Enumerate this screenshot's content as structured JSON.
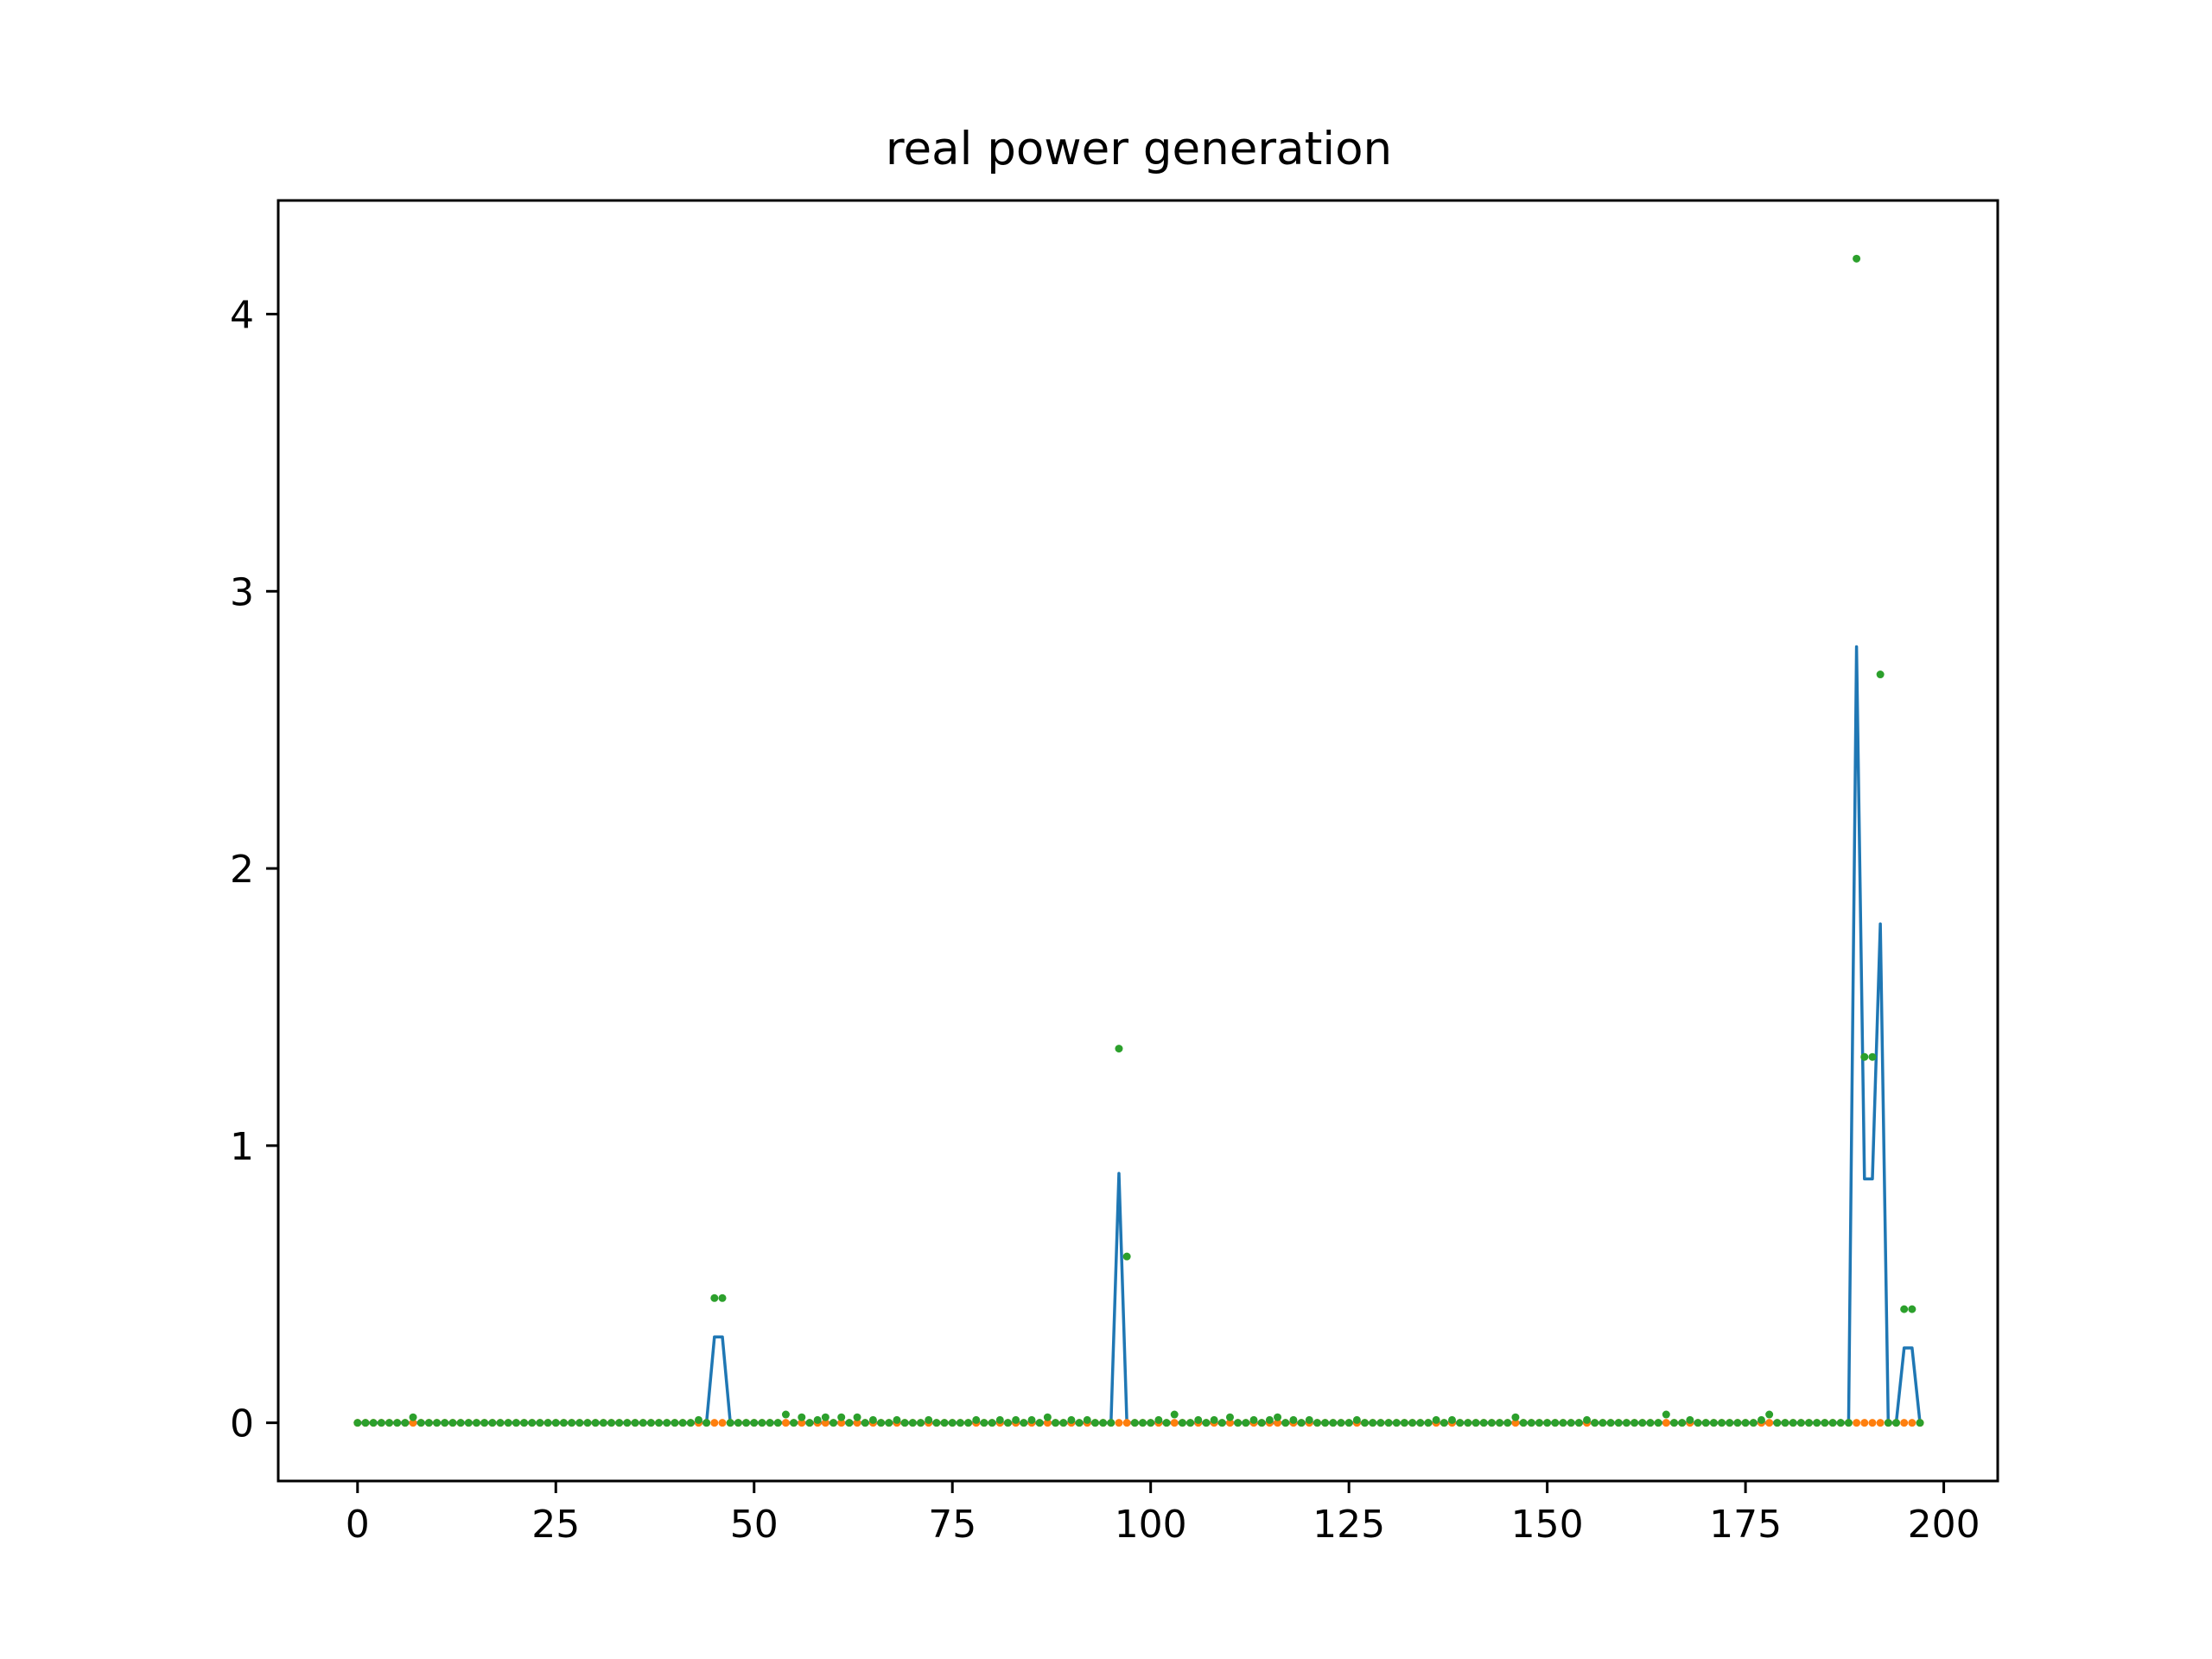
{
  "chart_data": {
    "type": "line",
    "title": "real power generation",
    "xlabel": "",
    "ylabel": "",
    "xlim": [
      -10,
      206.8
    ],
    "ylim": [
      -0.21,
      4.41
    ],
    "x_ticks": [
      0,
      25,
      50,
      75,
      100,
      125,
      150,
      175,
      200
    ],
    "y_ticks": [
      0,
      1,
      2,
      3,
      4
    ],
    "grid": false,
    "legend": "none",
    "n_points": 198,
    "series": [
      {
        "style": "line",
        "color": "#1f77b4",
        "nonzero_points": [
          [
            45,
            0.31
          ],
          [
            46,
            0.31
          ],
          [
            96,
            0.9
          ],
          [
            189,
            2.8
          ],
          [
            190,
            0.88
          ],
          [
            191,
            0.88
          ],
          [
            192,
            1.8
          ],
          [
            195,
            0.27
          ],
          [
            196,
            0.27
          ]
        ]
      },
      {
        "style": "markers",
        "color": "#ff7f0e",
        "nonzero_points": []
      },
      {
        "style": "markers",
        "color": "#2ca02c",
        "nonzero_points": [
          [
            7,
            0.02
          ],
          [
            43,
            0.01
          ],
          [
            45,
            0.45
          ],
          [
            46,
            0.45
          ],
          [
            54,
            0.03
          ],
          [
            56,
            0.02
          ],
          [
            58,
            0.01
          ],
          [
            59,
            0.02
          ],
          [
            61,
            0.02
          ],
          [
            63,
            0.02
          ],
          [
            65,
            0.01
          ],
          [
            68,
            0.01
          ],
          [
            72,
            0.01
          ],
          [
            78,
            0.01
          ],
          [
            81,
            0.01
          ],
          [
            83,
            0.01
          ],
          [
            85,
            0.01
          ],
          [
            87,
            0.02
          ],
          [
            90,
            0.01
          ],
          [
            92,
            0.01
          ],
          [
            96,
            1.35
          ],
          [
            97,
            0.6
          ],
          [
            101,
            0.01
          ],
          [
            103,
            0.03
          ],
          [
            106,
            0.01
          ],
          [
            108,
            0.01
          ],
          [
            110,
            0.02
          ],
          [
            113,
            0.01
          ],
          [
            115,
            0.01
          ],
          [
            116,
            0.02
          ],
          [
            118,
            0.01
          ],
          [
            120,
            0.01
          ],
          [
            126,
            0.01
          ],
          [
            136,
            0.01
          ],
          [
            138,
            0.01
          ],
          [
            146,
            0.02
          ],
          [
            155,
            0.01
          ],
          [
            165,
            0.03
          ],
          [
            168,
            0.01
          ],
          [
            177,
            0.01
          ],
          [
            178,
            0.03
          ],
          [
            189,
            4.2
          ],
          [
            190,
            1.32
          ],
          [
            191,
            1.32
          ],
          [
            192,
            2.7
          ],
          [
            195,
            0.41
          ],
          [
            196,
            0.41
          ]
        ]
      }
    ]
  }
}
